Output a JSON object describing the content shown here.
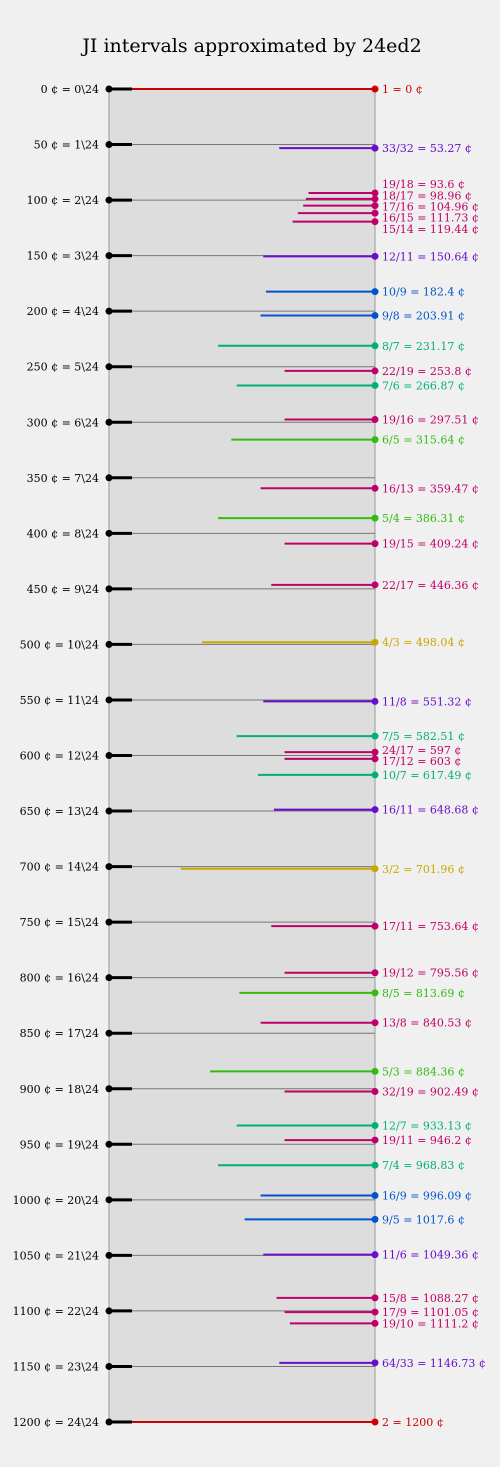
{
  "title": "JI intervals approximated by 24ed2",
  "chart_data": {
    "type": "diagram",
    "title": "JI intervals approximated by 24ed2",
    "ylim": [
      0,
      1200
    ],
    "edo_steps": [
      {
        "cents": 0,
        "label": "0 ¢ = 0\\24"
      },
      {
        "cents": 50,
        "label": "50 ¢ = 1\\24"
      },
      {
        "cents": 100,
        "label": "100 ¢ = 2\\24"
      },
      {
        "cents": 150,
        "label": "150 ¢ = 3\\24"
      },
      {
        "cents": 200,
        "label": "200 ¢ = 4\\24"
      },
      {
        "cents": 250,
        "label": "250 ¢ = 5\\24"
      },
      {
        "cents": 300,
        "label": "300 ¢ = 6\\24"
      },
      {
        "cents": 350,
        "label": "350 ¢ = 7\\24"
      },
      {
        "cents": 400,
        "label": "400 ¢ = 8\\24"
      },
      {
        "cents": 450,
        "label": "450 ¢ = 9\\24"
      },
      {
        "cents": 500,
        "label": "500 ¢ = 10\\24"
      },
      {
        "cents": 550,
        "label": "550 ¢ = 11\\24"
      },
      {
        "cents": 600,
        "label": "600 ¢ = 12\\24"
      },
      {
        "cents": 650,
        "label": "650 ¢ = 13\\24"
      },
      {
        "cents": 700,
        "label": "700 ¢ = 14\\24"
      },
      {
        "cents": 750,
        "label": "750 ¢ = 15\\24"
      },
      {
        "cents": 800,
        "label": "800 ¢ = 16\\24"
      },
      {
        "cents": 850,
        "label": "850 ¢ = 17\\24"
      },
      {
        "cents": 900,
        "label": "900 ¢ = 18\\24"
      },
      {
        "cents": 950,
        "label": "950 ¢ = 19\\24"
      },
      {
        "cents": 1000,
        "label": "1000 ¢ = 20\\24"
      },
      {
        "cents": 1050,
        "label": "1050 ¢ = 21\\24"
      },
      {
        "cents": 1100,
        "label": "1100 ¢ = 22\\24"
      },
      {
        "cents": 1150,
        "label": "1150 ¢ = 23\\24"
      },
      {
        "cents": 1200,
        "label": "1200 ¢ = 24\\24"
      }
    ],
    "ji_intervals": [
      {
        "cents": 0,
        "label": "1 = 0 ¢",
        "color": "#cc0000",
        "span": 0
      },
      {
        "cents": 53.27,
        "label": "33/32 = 53.27 ¢",
        "color": "#6a0dcc",
        "span": 0.36
      },
      {
        "cents": 93.6,
        "label": "19/18 = 93.6 ¢",
        "color": "#c0006a",
        "span": 0.25
      },
      {
        "cents": 98.96,
        "label": "18/17 = 98.96 ¢",
        "color": "#c0006a",
        "span": 0.26
      },
      {
        "cents": 104.96,
        "label": "17/16 = 104.96 ¢",
        "color": "#c0006a",
        "span": 0.27
      },
      {
        "cents": 111.73,
        "label": "16/15 = 111.73 ¢",
        "color": "#c0006a",
        "span": 0.29
      },
      {
        "cents": 119.44,
        "label": "15/14 = 119.44 ¢",
        "color": "#c0006a",
        "span": 0.31
      },
      {
        "cents": 150.64,
        "label": "12/11 = 150.64 ¢",
        "color": "#6a0dcc",
        "span": 0.42
      },
      {
        "cents": 182.4,
        "label": "10/9 = 182.4 ¢",
        "color": "#0055cc",
        "span": 0.41
      },
      {
        "cents": 203.91,
        "label": "9/8 = 203.91 ¢",
        "color": "#0055cc",
        "span": 0.43
      },
      {
        "cents": 231.17,
        "label": "8/7 = 231.17 ¢",
        "color": "#00b07a",
        "span": 0.59
      },
      {
        "cents": 253.8,
        "label": "22/19 = 253.8 ¢",
        "color": "#c0006a",
        "span": 0.34
      },
      {
        "cents": 266.87,
        "label": "7/6 = 266.87 ¢",
        "color": "#00b07a",
        "span": 0.52
      },
      {
        "cents": 297.51,
        "label": "19/16 = 297.51 ¢",
        "color": "#c0006a",
        "span": 0.34
      },
      {
        "cents": 315.64,
        "label": "6/5 = 315.64 ¢",
        "color": "#33bb11",
        "span": 0.54
      },
      {
        "cents": 359.47,
        "label": "16/13 = 359.47 ¢",
        "color": "#c0006a",
        "span": 0.43
      },
      {
        "cents": 386.31,
        "label": "5/4 = 386.31 ¢",
        "color": "#33bb11",
        "span": 0.59
      },
      {
        "cents": 409.24,
        "label": "19/15 = 409.24 ¢",
        "color": "#c0006a",
        "span": 0.34
      },
      {
        "cents": 446.36,
        "label": "22/17 = 446.36 ¢",
        "color": "#c0006a",
        "span": 0.39
      },
      {
        "cents": 498.04,
        "label": "4/3 = 498.04 ¢",
        "color": "#c8a800",
        "span": 0.65
      },
      {
        "cents": 551.32,
        "label": "11/8 = 551.32 ¢",
        "color": "#6a0dcc",
        "span": 0.42
      },
      {
        "cents": 582.51,
        "label": "7/5 = 582.51 ¢",
        "color": "#00b07a",
        "span": 0.52
      },
      {
        "cents": 597,
        "label": "24/17 = 597 ¢",
        "color": "#c0006a",
        "span": 0.34
      },
      {
        "cents": 603,
        "label": "17/12 = 603 ¢",
        "color": "#c0006a",
        "span": 0.34
      },
      {
        "cents": 617.49,
        "label": "10/7 = 617.49 ¢",
        "color": "#00b07a",
        "span": 0.44
      },
      {
        "cents": 648.68,
        "label": "16/11 = 648.68 ¢",
        "color": "#6a0dcc",
        "span": 0.38
      },
      {
        "cents": 701.96,
        "label": "3/2 = 701.96 ¢",
        "color": "#c8a800",
        "span": 0.73
      },
      {
        "cents": 753.64,
        "label": "17/11 = 753.64 ¢",
        "color": "#c0006a",
        "span": 0.39
      },
      {
        "cents": 795.56,
        "label": "19/12 = 795.56 ¢",
        "color": "#c0006a",
        "span": 0.34
      },
      {
        "cents": 813.69,
        "label": "8/5 = 813.69 ¢",
        "color": "#33bb11",
        "span": 0.51
      },
      {
        "cents": 840.53,
        "label": "13/8 = 840.53 ¢",
        "color": "#c0006a",
        "span": 0.43
      },
      {
        "cents": 884.36,
        "label": "5/3 = 884.36 ¢",
        "color": "#33bb11",
        "span": 0.62
      },
      {
        "cents": 902.49,
        "label": "32/19 = 902.49 ¢",
        "color": "#c0006a",
        "span": 0.34
      },
      {
        "cents": 933.13,
        "label": "12/7 = 933.13 ¢",
        "color": "#00b07a",
        "span": 0.52
      },
      {
        "cents": 946.2,
        "label": "19/11 = 946.2 ¢",
        "color": "#c0006a",
        "span": 0.34
      },
      {
        "cents": 968.83,
        "label": "7/4 = 968.83 ¢",
        "color": "#00b07a",
        "span": 0.59
      },
      {
        "cents": 996.09,
        "label": "16/9 = 996.09 ¢",
        "color": "#0055cc",
        "span": 0.43
      },
      {
        "cents": 1017.6,
        "label": "9/5 = 1017.6 ¢",
        "color": "#0055cc",
        "span": 0.49
      },
      {
        "cents": 1049.36,
        "label": "11/6 = 1049.36 ¢",
        "color": "#6a0dcc",
        "span": 0.42
      },
      {
        "cents": 1088.27,
        "label": "15/8 = 1088.27 ¢",
        "color": "#c0006a",
        "span": 0.37
      },
      {
        "cents": 1101.05,
        "label": "17/9 = 1101.05 ¢",
        "color": "#c0006a",
        "span": 0.34
      },
      {
        "cents": 1111.2,
        "label": "19/10 = 1111.2 ¢",
        "color": "#c0006a",
        "span": 0.32
      },
      {
        "cents": 1146.73,
        "label": "64/33 = 1146.73 ¢",
        "color": "#6a0dcc",
        "span": 0.36
      },
      {
        "cents": 1200,
        "label": "2 = 1200 ¢",
        "color": "#cc0000",
        "span": 0
      }
    ]
  }
}
